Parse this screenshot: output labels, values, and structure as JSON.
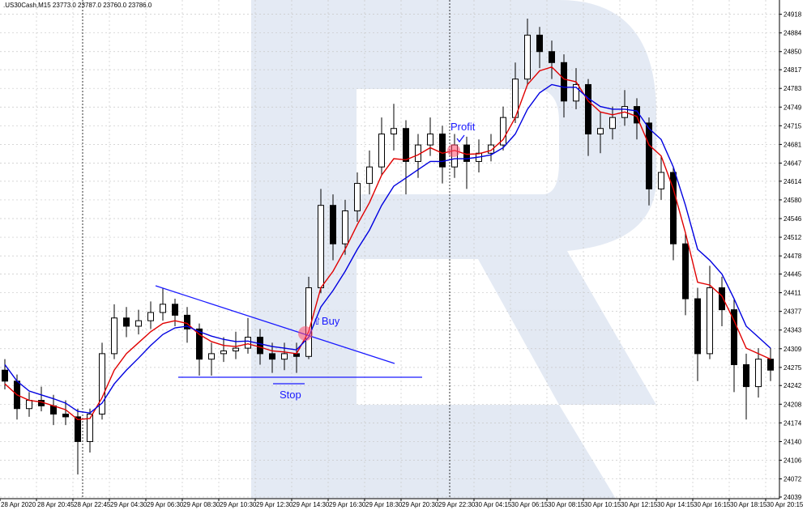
{
  "chart_data": {
    "type": "candlestick",
    "title": ".US30Cash,M15  23773.0 23787.0 23760.0 23786.0",
    "xticks": [
      "28 Apr 2020",
      "28 Apr 20:45",
      "28 Apr 22:45",
      "29 Apr 04:30",
      "29 Apr 06:30",
      "29 Apr 08:30",
      "29 Apr 10:30",
      "29 Apr 12:30",
      "29 Apr 14:30",
      "29 Apr 16:30",
      "29 Apr 18:30",
      "29 Apr 20:30",
      "29 Apr 22:30",
      "30 Apr 04:15",
      "30 Apr 06:15",
      "30 Apr 08:15",
      "30 Apr 10:15",
      "30 Apr 12:15",
      "30 Apr 14:15",
      "30 Apr 16:15",
      "30 Apr 18:15",
      "30 Apr 20:15"
    ],
    "ylim": [
      24036,
      24941
    ],
    "yticks": [
      24918,
      24884,
      24850,
      24817,
      24783,
      24749,
      24715,
      24681,
      24647,
      24614,
      24580,
      24546,
      24512,
      24478,
      24445,
      24411,
      24377,
      24343,
      24309,
      24275,
      24242,
      24208,
      24174,
      24140,
      24106,
      24072,
      24039
    ],
    "grid": true,
    "up_color": "#ffffff",
    "down_color": "#000000",
    "ohlc": [
      [
        24270,
        24290,
        24235,
        24250
      ],
      [
        24250,
        24262,
        24180,
        24200
      ],
      [
        24200,
        24230,
        24185,
        24215
      ],
      [
        24215,
        24240,
        24195,
        24205
      ],
      [
        24205,
        24225,
        24170,
        24190
      ],
      [
        24190,
        24215,
        24170,
        24185
      ],
      [
        24185,
        24200,
        24080,
        24140
      ],
      [
        24140,
        24200,
        24120,
        24190
      ],
      [
        24190,
        24320,
        24180,
        24300
      ],
      [
        24300,
        24390,
        24290,
        24365
      ],
      [
        24365,
        24385,
        24330,
        24350
      ],
      [
        24350,
        24380,
        24335,
        24360
      ],
      [
        24360,
        24395,
        24345,
        24375
      ],
      [
        24375,
        24420,
        24360,
        24390
      ],
      [
        24390,
        24400,
        24350,
        24370
      ],
      [
        24370,
        24385,
        24320,
        24345
      ],
      [
        24345,
        24355,
        24260,
        24290
      ],
      [
        24290,
        24320,
        24260,
        24300
      ],
      [
        24300,
        24330,
        24285,
        24305
      ],
      [
        24305,
        24340,
        24290,
        24310
      ],
      [
        24310,
        24365,
        24300,
        24330
      ],
      [
        24330,
        24345,
        24280,
        24300
      ],
      [
        24300,
        24320,
        24265,
        24290
      ],
      [
        24290,
        24320,
        24270,
        24300
      ],
      [
        24300,
        24320,
        24265,
        24295
      ],
      [
        24295,
        24440,
        24290,
        24420
      ],
      [
        24420,
        24600,
        24410,
        24570
      ],
      [
        24570,
        24590,
        24470,
        24500
      ],
      [
        24500,
        24580,
        24480,
        24560
      ],
      [
        24560,
        24630,
        24540,
        24610
      ],
      [
        24610,
        24670,
        24590,
        24640
      ],
      [
        24640,
        24730,
        24625,
        24700
      ],
      [
        24700,
        24755,
        24670,
        24710
      ],
      [
        24710,
        24725,
        24590,
        24650
      ],
      [
        24650,
        24700,
        24620,
        24680
      ],
      [
        24680,
        24730,
        24660,
        24700
      ],
      [
        24700,
        24715,
        24610,
        24640
      ],
      [
        24640,
        24700,
        24620,
        24680
      ],
      [
        24680,
        24695,
        24600,
        24650
      ],
      [
        24650,
        24690,
        24630,
        24665
      ],
      [
        24665,
        24700,
        24650,
        24680
      ],
      [
        24680,
        24750,
        24670,
        24730
      ],
      [
        24730,
        24830,
        24720,
        24800
      ],
      [
        24800,
        24910,
        24790,
        24880
      ],
      [
        24880,
        24895,
        24820,
        24850
      ],
      [
        24850,
        24870,
        24800,
        24830
      ],
      [
        24830,
        24845,
        24730,
        24760
      ],
      [
        24760,
        24820,
        24745,
        24790
      ],
      [
        24790,
        24800,
        24660,
        24700
      ],
      [
        24700,
        24740,
        24665,
        24710
      ],
      [
        24710,
        24750,
        24690,
        24730
      ],
      [
        24730,
        24780,
        24715,
        24750
      ],
      [
        24750,
        24765,
        24690,
        24720
      ],
      [
        24720,
        24730,
        24570,
        24600
      ],
      [
        24600,
        24660,
        24580,
        24630
      ],
      [
        24630,
        24640,
        24470,
        24500
      ],
      [
        24500,
        24520,
        24370,
        24400
      ],
      [
        24400,
        24420,
        24250,
        24300
      ],
      [
        24300,
        24460,
        24290,
        24420
      ],
      [
        24420,
        24440,
        24350,
        24380
      ],
      [
        24380,
        24400,
        24230,
        24280
      ],
      [
        24280,
        24300,
        24180,
        24240
      ],
      [
        24240,
        24310,
        24220,
        24290
      ],
      [
        24290,
        24310,
        24250,
        24270
      ]
    ],
    "series": [
      {
        "color": "#e00000",
        "values": [
          24245,
          24225,
          24215,
          24212,
          24205,
          24198,
          24180,
          24182,
          24220,
          24270,
          24300,
          24320,
          24340,
          24355,
          24360,
          24355,
          24335,
          24322,
          24315,
          24313,
          24318,
          24312,
          24305,
          24303,
          24300,
          24340,
          24420,
          24450,
          24490,
          24535,
          24575,
          24625,
          24655,
          24653,
          24662,
          24675,
          24665,
          24670,
          24663,
          24664,
          24670,
          24690,
          24730,
          24790,
          24815,
          24822,
          24800,
          24795,
          24760,
          24740,
          24735,
          24740,
          24732,
          24680,
          24660,
          24600,
          24520,
          24430,
          24425,
          24405,
          24360,
          24310,
          24300,
          24290
        ]
      },
      {
        "color": "#0000e0",
        "values": [
          24280,
          24250,
          24232,
          24225,
          24218,
          24210,
          24195,
          24192,
          24210,
          24245,
          24270,
          24292,
          24315,
          24335,
          24347,
          24350,
          24340,
          24332,
          24326,
          24322,
          24323,
          24318,
          24313,
          24310,
          24307,
          24330,
          24385,
          24415,
          24450,
          24490,
          24525,
          24570,
          24605,
          24620,
          24635,
          24650,
          24650,
          24655,
          24655,
          24658,
          24662,
          24675,
          24700,
          24745,
          24775,
          24790,
          24785,
          24785,
          24765,
          24750,
          24745,
          24745,
          24742,
          24710,
          24690,
          24640,
          24570,
          24490,
          24470,
          24445,
          24400,
          24350,
          24330,
          24310
        ]
      }
    ],
    "annotations": {
      "buy": "⇧Buy",
      "profit": "Profit",
      "stop": "Stop"
    }
  }
}
